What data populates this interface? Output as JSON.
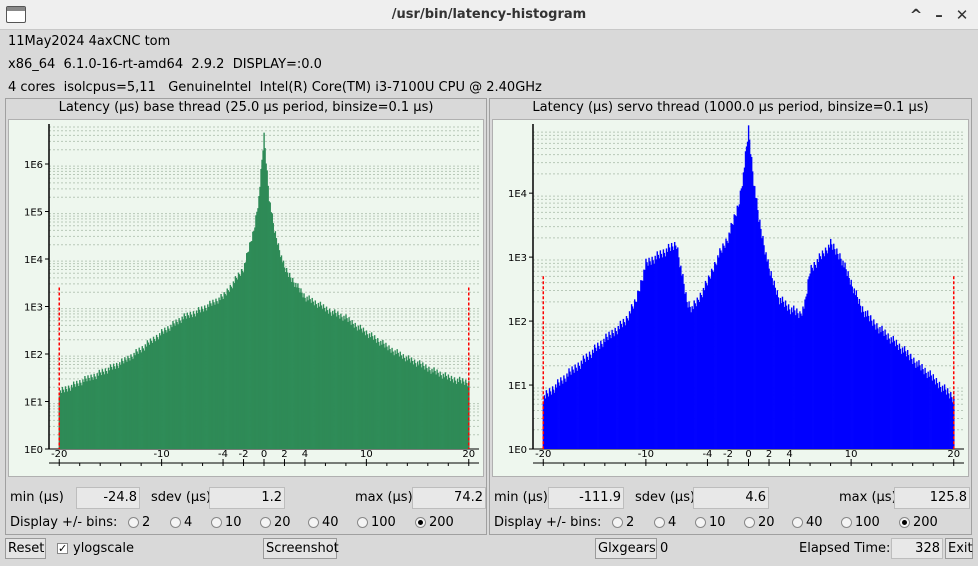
{
  "window": {
    "title": "/usr/bin/latency-histogram",
    "buttons": [
      "^",
      "–",
      "✕"
    ]
  },
  "info": {
    "line1": "11May2024 4axCNC tom",
    "line2": "x86_64  6.1.0-16-rt-amd64  2.9.2  DISPLAY=:0.0",
    "line3": "4 cores  isolcpus=5,11   GenuineIntel  Intel(R) Core(TM) i3-7100U CPU @ 2.40GHz"
  },
  "colors": {
    "base_fill": "#2e8b57",
    "servo_fill": "#0000ff",
    "limit_marker": "#ff0000",
    "plot_bg": "#eef7ee"
  },
  "base": {
    "title": "Latency (µs) base thread (25.0 µs period, binsize=0.1 µs)",
    "min_label": "min (µs)",
    "min_value": "-24.8",
    "sdev_label": "sdev (µs)",
    "sdev_value": "1.2",
    "max_label": "max (µs)",
    "max_value": "74.2",
    "bins_label": "Display +/- bins:",
    "bin_options": [
      "2",
      "4",
      "10",
      "20",
      "40",
      "100",
      "200"
    ],
    "selected_bin": "200"
  },
  "servo": {
    "title": "Latency (µs) servo thread (1000.0 µs period, binsize=0.1 µs)",
    "min_label": "min (µs)",
    "min_value": "-111.9",
    "sdev_label": "sdev (µs)",
    "sdev_value": "4.6",
    "max_label": "max (µs)",
    "max_value": "125.8",
    "bins_label": "Display +/- bins:",
    "bin_options": [
      "2",
      "4",
      "10",
      "20",
      "40",
      "100",
      "200"
    ],
    "selected_bin": "200"
  },
  "chart_data": [
    {
      "type": "area",
      "title": "Latency (µs) base thread (25.0 µs period, binsize=0.1 µs)",
      "xlim": [
        -21,
        21
      ],
      "ylim_log10": [
        0,
        6.8
      ],
      "log_scale": true,
      "x_ticks": [
        "-20",
        "-10",
        "-4",
        "-2",
        "0",
        "2",
        "4",
        "10",
        "20"
      ],
      "y_ticks": [
        "1E0",
        "1E1",
        "1E2",
        "1E3",
        "1E4",
        "1E5",
        "1E6"
      ],
      "x": [
        -20,
        -18,
        -16,
        -14,
        -12,
        -10,
        -8,
        -6,
        -4,
        -2,
        -1,
        -0.5,
        0,
        0.5,
        1,
        2,
        4,
        6,
        8,
        10,
        12,
        14,
        16,
        18,
        20
      ],
      "y_log10": [
        1.2,
        1.4,
        1.6,
        1.8,
        2.1,
        2.45,
        2.75,
        2.95,
        3.2,
        3.8,
        4.6,
        5.3,
        6.6,
        5.3,
        4.6,
        3.8,
        3.2,
        2.95,
        2.75,
        2.45,
        2.15,
        1.9,
        1.7,
        1.5,
        1.4
      ],
      "edge_markers_log10": [
        {
          "x": -20,
          "y": 3.4
        },
        {
          "x": 20,
          "y": 3.4
        }
      ]
    },
    {
      "type": "area",
      "title": "Latency (µs) servo thread (1000.0 µs period, binsize=0.1 µs)",
      "xlim": [
        -21,
        21
      ],
      "ylim_log10": [
        0,
        5.05
      ],
      "log_scale": true,
      "x_ticks": [
        "-20",
        "-10",
        "-4",
        "-2",
        "0",
        "2",
        "4",
        "10",
        "20"
      ],
      "y_ticks": [
        "1E0",
        "1E1",
        "1E2",
        "1E3",
        "1E4"
      ],
      "x": [
        -20,
        -18,
        -16,
        -14,
        -12,
        -11,
        -10,
        -9,
        -8,
        -7,
        -6,
        -5.5,
        -5,
        -4,
        -3,
        -2,
        -1,
        -0.5,
        0,
        0.5,
        1,
        2,
        3,
        4,
        5,
        5.5,
        6,
        7,
        8,
        9,
        10,
        11,
        12,
        14,
        16,
        18,
        20
      ],
      "y_log10": [
        0.8,
        1.1,
        1.4,
        1.7,
        2.0,
        2.3,
        2.9,
        3.0,
        3.1,
        3.2,
        2.3,
        2.2,
        2.3,
        2.6,
        3.0,
        3.3,
        3.8,
        4.3,
        5.0,
        4.2,
        3.6,
        2.8,
        2.35,
        2.2,
        2.1,
        2.25,
        2.8,
        3.0,
        3.2,
        3.0,
        2.6,
        2.2,
        2.0,
        1.7,
        1.4,
        1.1,
        0.8
      ],
      "edge_markers_log10": [
        {
          "x": -20,
          "y": 2.7
        },
        {
          "x": 20,
          "y": 2.7
        }
      ]
    }
  ],
  "footer": {
    "reset": "Reset",
    "ylogscale": "ylogscale",
    "screenshot": "Screenshot",
    "glxgears": "Glxgears",
    "glxgears_count": "0",
    "elapsed_label": "Elapsed Time:",
    "elapsed_value": "328",
    "exit": "Exit"
  }
}
